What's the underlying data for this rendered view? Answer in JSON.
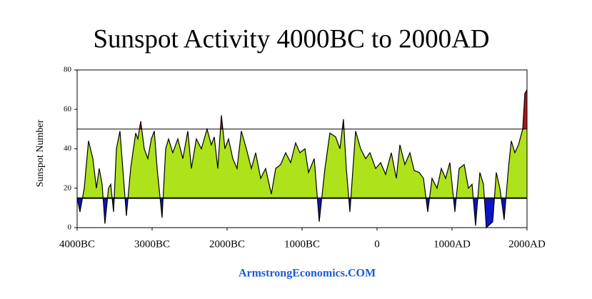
{
  "chart_data": {
    "type": "area",
    "title": "Sunspot Activity 4000BC to 2000AD",
    "y_label": "Sunspot Number",
    "footer": "ArmstrongEconomics.COM",
    "x": [
      -4000,
      -3962,
      -3905,
      -3848,
      -3790,
      -3743,
      -3705,
      -3667,
      -3629,
      -3581,
      -3552,
      -3514,
      -3476,
      -3429,
      -3381,
      -3343,
      -3286,
      -3219,
      -3190,
      -3152,
      -3105,
      -3057,
      -3010,
      -2971,
      -2933,
      -2867,
      -2819,
      -2781,
      -2724,
      -2657,
      -2590,
      -2524,
      -2476,
      -2410,
      -2343,
      -2267,
      -2210,
      -2171,
      -2124,
      -2076,
      -2029,
      -1981,
      -1924,
      -1867,
      -1810,
      -1743,
      -1676,
      -1619,
      -1552,
      -1486,
      -1410,
      -1352,
      -1286,
      -1219,
      -1152,
      -1086,
      -1029,
      -962,
      -914,
      -838,
      -771,
      -695,
      -629,
      -552,
      -495,
      -448,
      -410,
      -362,
      -286,
      -219,
      -152,
      -95,
      -19,
      48,
      114,
      190,
      257,
      305,
      371,
      438,
      495,
      562,
      619,
      676,
      733,
      800,
      857,
      914,
      971,
      1038,
      1095,
      1162,
      1219,
      1267,
      1314,
      1371,
      1419,
      1457,
      1543,
      1590,
      1638,
      1695,
      1752,
      1790,
      1838,
      1886,
      1943,
      1971,
      2000
    ],
    "values": [
      15,
      8,
      20,
      44,
      35,
      20,
      30,
      22,
      2,
      20,
      22,
      8,
      40,
      49,
      25,
      6,
      30,
      48,
      45,
      54,
      40,
      35,
      45,
      49,
      30,
      5,
      40,
      45,
      38,
      45,
      35,
      49,
      30,
      45,
      40,
      50,
      42,
      46,
      30,
      57,
      40,
      45,
      35,
      30,
      49,
      40,
      30,
      38,
      25,
      30,
      17,
      30,
      32,
      38,
      33,
      43,
      38,
      40,
      28,
      35,
      3,
      30,
      48,
      46,
      40,
      55,
      30,
      8,
      49,
      40,
      35,
      38,
      30,
      33,
      27,
      38,
      25,
      42,
      32,
      38,
      29,
      28,
      25,
      8,
      25,
      20,
      30,
      25,
      33,
      8,
      30,
      32,
      20,
      22,
      1,
      28,
      22,
      0,
      3,
      28,
      20,
      4,
      30,
      44,
      38,
      42,
      50,
      68,
      70
    ],
    "colors": {
      "low": "#0a14c8",
      "mid": "#aee21a",
      "high": "#b01818",
      "line": "#000000"
    },
    "reference_lines": [
      15,
      50
    ],
    "xlim": [
      -4000,
      2000
    ],
    "ylim": [
      0,
      80
    ],
    "xticks": [
      {
        "value": -4000,
        "label": "4000BC"
      },
      {
        "value": -3000,
        "label": "3000BC"
      },
      {
        "value": -2000,
        "label": "2000BC"
      },
      {
        "value": -1000,
        "label": "1000BC"
      },
      0,
      {
        "value": 1000,
        "label": "1000AD"
      },
      {
        "value": 2000,
        "label": "2000AD"
      }
    ],
    "yticks": [
      0,
      20,
      40,
      60,
      80
    ]
  }
}
